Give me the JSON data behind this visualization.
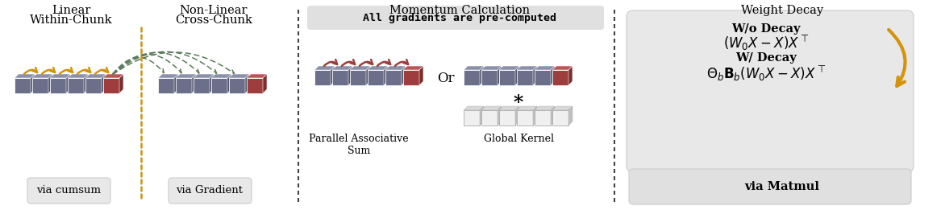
{
  "fig_width": 11.67,
  "fig_height": 2.61,
  "bg_color": "#ffffff",
  "panel1": {
    "title1_l1": "Linear",
    "title1_l2": "Within-Chunk",
    "title2_l1": "Non-Linear",
    "title2_l2": "Cross-Chunk",
    "label1": "via cumsum",
    "label2": "via Gradient",
    "block_color": "#6b6f8a",
    "block_red": "#9e3d3d",
    "arrow_orange": "#d4930a",
    "arrow_green": "#5a7a5a",
    "divider_orange": "#d4930a",
    "divider_dash": "#555555"
  },
  "panel2": {
    "title": "Momentum Calculation",
    "subtitle": "All gradients are pre-computed",
    "label_left": "Parallel Associative\nSum",
    "label_right": "Global Kernel",
    "or_text": "Or",
    "star_text": "*",
    "block_color": "#6b6f8a",
    "block_red": "#9e3d3d",
    "arrow_red": "#9e3d3d",
    "divider_dash": "#555555"
  },
  "panel3": {
    "title": "Weight Decay",
    "label_wo": "W/o Decay",
    "formula_wo": "$(W_0X - X)X^{\\top}$",
    "label_w": "W/ Decay",
    "formula_w": "$\\Theta_b\\mathbf{B}_b(W_0X - X)X^{\\top}$",
    "label_bottom": "via Matmul",
    "arrow_color": "#d4930a",
    "box_bg": "#e8e8e8",
    "bottom_box_bg": "#e0e0e0"
  }
}
